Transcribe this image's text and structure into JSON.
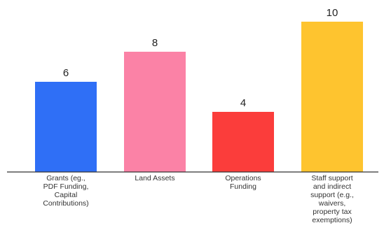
{
  "chart_data": {
    "type": "bar",
    "categories": [
      [
        "Grants (eg.,",
        "PDF Funding,",
        "Capital",
        "Contributions)"
      ],
      [
        "Land Assets"
      ],
      [
        "Operations",
        "Funding"
      ],
      [
        "Staff support",
        "and indirect",
        "support (e.g.,",
        "waivers,",
        "property tax",
        "exemptions)"
      ]
    ],
    "values": [
      6,
      8,
      4,
      10
    ],
    "colors": [
      "#2f6ff6",
      "#fb82a6",
      "#fb3d3b",
      "#fec42f"
    ],
    "value_labels": [
      "6",
      "8",
      "4",
      "10"
    ],
    "ylim": [
      0,
      10
    ],
    "grid": false,
    "legend": "none"
  }
}
